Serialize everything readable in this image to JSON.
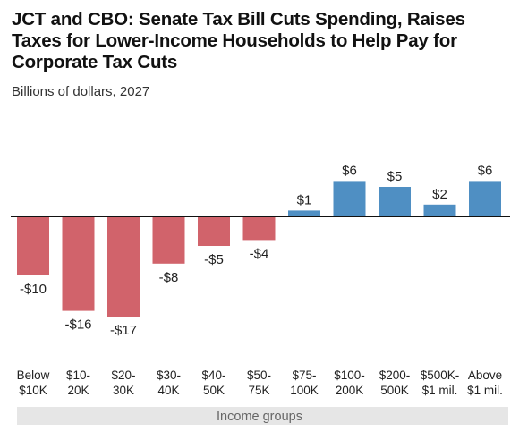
{
  "chart_data": {
    "type": "bar",
    "title": "JCT and CBO: Senate Tax Bill Cuts Spending, Raises Taxes for Lower-Income Households to Help Pay for Corporate Tax Cuts",
    "subtitle": "Billions of dollars, 2027",
    "xlabel": "Income groups",
    "ylabel": "",
    "categories": [
      [
        "Below",
        "$10K"
      ],
      [
        "$10-",
        "20K"
      ],
      [
        "$20-",
        "30K"
      ],
      [
        "$30-",
        "40K"
      ],
      [
        "$40-",
        "50K"
      ],
      [
        "$50-",
        "75K"
      ],
      [
        "$75-",
        "100K"
      ],
      [
        "$100-",
        "200K"
      ],
      [
        "$200-",
        "500K"
      ],
      [
        "$500K-",
        "$1 mil."
      ],
      [
        "Above",
        "$1 mil."
      ]
    ],
    "values": [
      -10,
      -16,
      -17,
      -8,
      -5,
      -4,
      1,
      6,
      5,
      2,
      6
    ],
    "value_labels": [
      "-$10",
      "-$16",
      "-$17",
      "-$8",
      "-$5",
      "-$4",
      "$1",
      "$6",
      "$5",
      "$2",
      "$6"
    ],
    "ylim": [
      -17,
      6
    ],
    "grid": false,
    "colors": {
      "negative": "#d1636b",
      "positive": "#4f8fc3",
      "axis": "#111111",
      "xlabel_band": "#e6e6e6"
    }
  }
}
